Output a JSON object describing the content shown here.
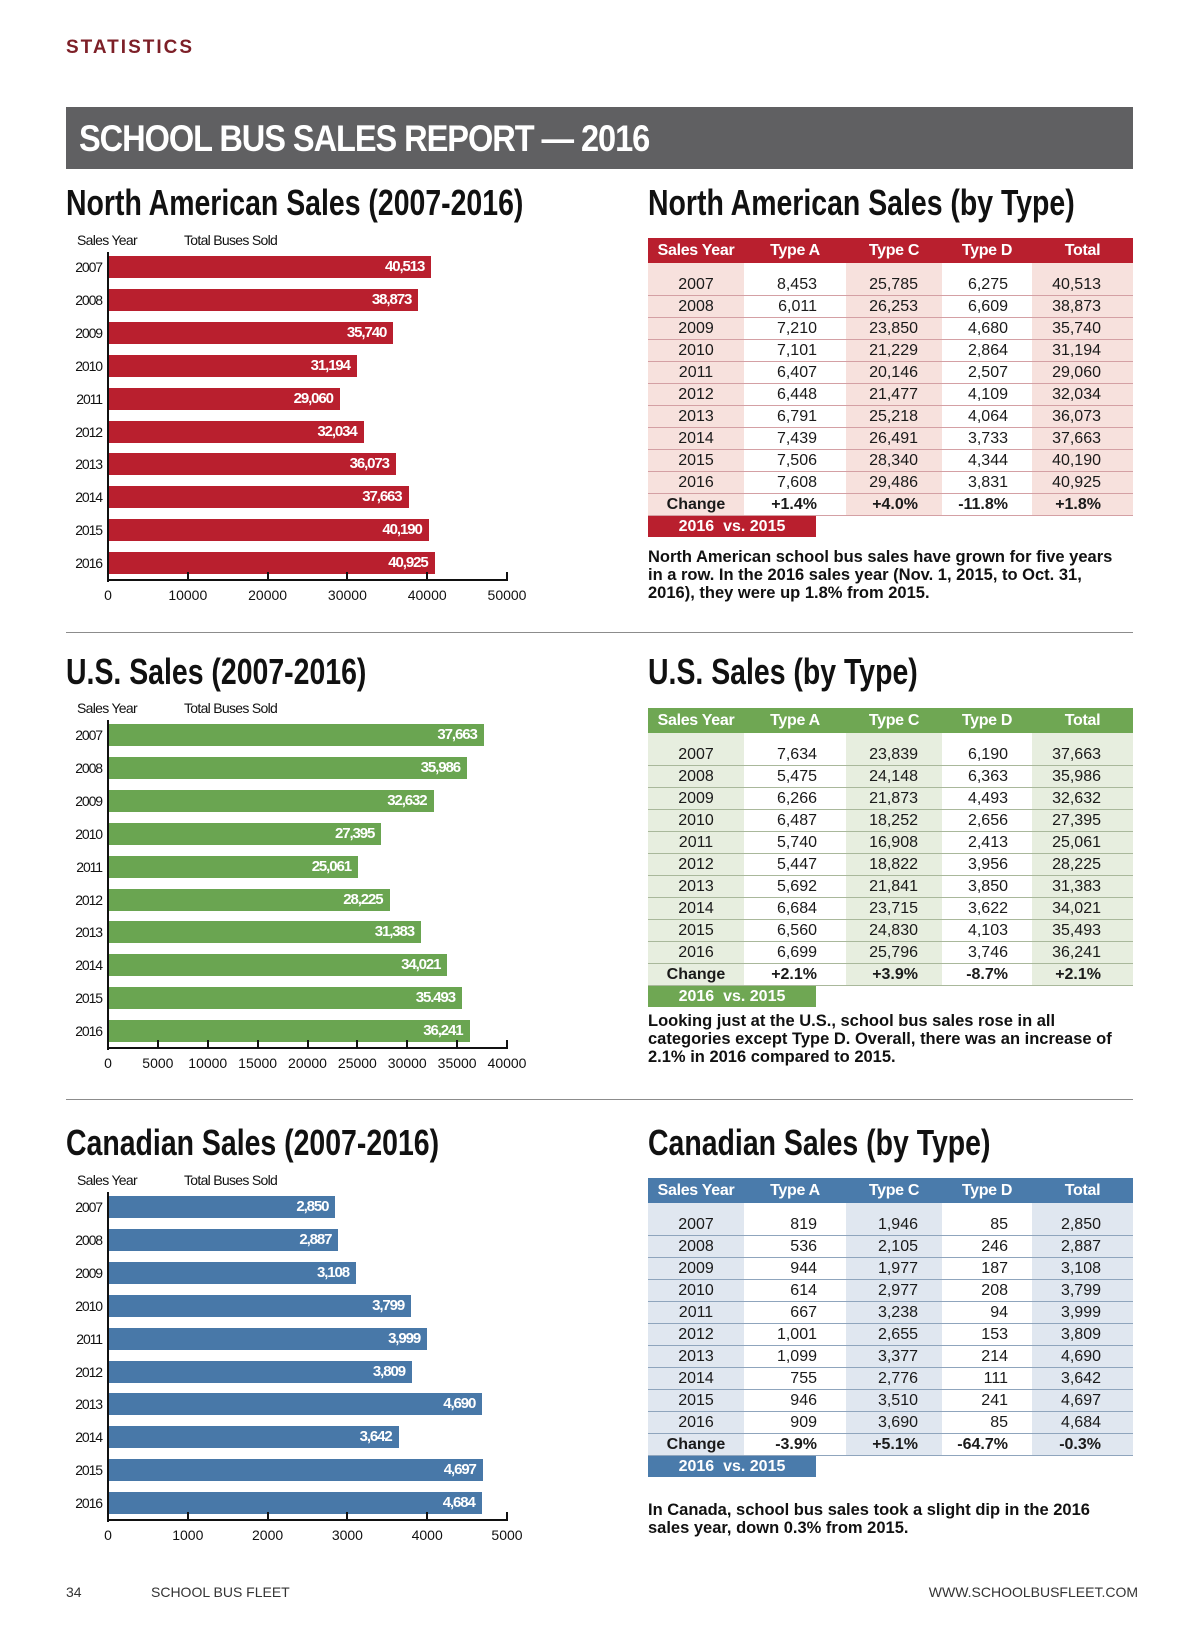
{
  "header": {
    "section_label": "STATISTICS",
    "banner_title": "SCHOOL BUS SALES REPORT — 2016"
  },
  "tables": [
    {
      "title": "North American Sales (by Type)",
      "colors": {
        "accent": "#b91f2e",
        "tint": "#f7e1dd",
        "rule": "#d4a0a4"
      },
      "headers": [
        "Sales Year",
        "Type A",
        "Type C",
        "Type D",
        "Total"
      ],
      "rows": [
        [
          "2007",
          "8,453",
          "25,785",
          "6,275",
          "40,513"
        ],
        [
          "2008",
          "6,011",
          "26,253",
          "6,609",
          "38,873"
        ],
        [
          "2009",
          "7,210",
          "23,850",
          "4,680",
          "35,740"
        ],
        [
          "2010",
          "7,101",
          "21,229",
          "2,864",
          "31,194"
        ],
        [
          "2011",
          "6,407",
          "20,146",
          "2,507",
          "29,060"
        ],
        [
          "2012",
          "6,448",
          "21,477",
          "4,109",
          "32,034"
        ],
        [
          "2013",
          "6,791",
          "25,218",
          "4,064",
          "36,073"
        ],
        [
          "2014",
          "7,439",
          "26,491",
          "3,733",
          "37,663"
        ],
        [
          "2015",
          "7,506",
          "28,340",
          "4,344",
          "40,190"
        ],
        [
          "2016",
          "7,608",
          "29,486",
          "3,831",
          "40,925"
        ]
      ],
      "change": [
        "Change",
        "+1.4%",
        "+4.0%",
        "-11.8%",
        "+1.8%"
      ],
      "comparison_label": "2016  vs. 2015",
      "description": "North American school bus sales have grown for five years in a row. In the 2016 sales year (Nov. 1, 2015, to Oct. 31, 2016), they were up 1.8% from 2015."
    },
    {
      "title": "U.S. Sales (by Type)",
      "colors": {
        "accent": "#6fa753",
        "tint": "#e7eedf",
        "rule": "#a9b89b"
      },
      "headers": [
        "Sales Year",
        "Type A",
        "Type C",
        "Type D",
        "Total"
      ],
      "rows": [
        [
          "2007",
          "7,634",
          "23,839",
          "6,190",
          "37,663"
        ],
        [
          "2008",
          "5,475",
          "24,148",
          "6,363",
          "35,986"
        ],
        [
          "2009",
          "6,266",
          "21,873",
          "4,493",
          "32,632"
        ],
        [
          "2010",
          "6,487",
          "18,252",
          "2,656",
          "27,395"
        ],
        [
          "2011",
          "5,740",
          "16,908",
          "2,413",
          "25,061"
        ],
        [
          "2012",
          "5,447",
          "18,822",
          "3,956",
          "28,225"
        ],
        [
          "2013",
          "5,692",
          "21,841",
          "3,850",
          "31,383"
        ],
        [
          "2014",
          "6,684",
          "23,715",
          "3,622",
          "34,021"
        ],
        [
          "2015",
          "6,560",
          "24,830",
          "4,103",
          "35,493"
        ],
        [
          "2016",
          "6,699",
          "25,796",
          "3,746",
          "36,241"
        ]
      ],
      "change": [
        "Change",
        "+2.1%",
        "+3.9%",
        "-8.7%",
        "+2.1%"
      ],
      "comparison_label": "2016  vs. 2015",
      "description": "Looking just at the U.S., school bus sales rose in all categories except Type D. Overall, there was an increase of 2.1% in 2016 compared to 2015."
    },
    {
      "title": "Canadian Sales (by Type)",
      "colors": {
        "accent": "#4a7bab",
        "tint": "#e0e7f0",
        "rule": "#8fa5bd"
      },
      "headers": [
        "Sales Year",
        "Type A",
        "Type C",
        "Type D",
        "Total"
      ],
      "rows": [
        [
          "2007",
          "819",
          "1,946",
          "85",
          "2,850"
        ],
        [
          "2008",
          "536",
          "2,105",
          "246",
          "2,887"
        ],
        [
          "2009",
          "944",
          "1,977",
          "187",
          "3,108"
        ],
        [
          "2010",
          "614",
          "2,977",
          "208",
          "3,799"
        ],
        [
          "2011",
          "667",
          "3,238",
          "94",
          "3,999"
        ],
        [
          "2012",
          "1,001",
          "2,655",
          "153",
          "3,809"
        ],
        [
          "2013",
          "1,099",
          "3,377",
          "214",
          "4,690"
        ],
        [
          "2014",
          "755",
          "2,776",
          "111",
          "3,642"
        ],
        [
          "2015",
          "946",
          "3,510",
          "241",
          "4,697"
        ],
        [
          "2016",
          "909",
          "3,690",
          "85",
          "4,684"
        ]
      ],
      "change": [
        "Change",
        "-3.9%",
        "+5.1%",
        "-64.7%",
        "-0.3%"
      ],
      "comparison_label": "2016  vs. 2015",
      "description": "In Canada, school bus sales took a slight dip in the 2016 sales year, down 0.3% from 2015."
    }
  ],
  "chart_data": [
    {
      "type": "bar",
      "orientation": "horizontal",
      "title": "North American Sales (2007-2016)",
      "ylabel": "Sales Year",
      "xlabel": "Total Buses Sold",
      "color": "#b91f2e",
      "categories": [
        "2007",
        "2008",
        "2009",
        "2010",
        "2011",
        "2012",
        "2013",
        "2014",
        "2015",
        "2016"
      ],
      "values": [
        40513,
        38873,
        35740,
        31194,
        29060,
        32034,
        36073,
        37663,
        40190,
        40925
      ],
      "value_labels": [
        "40,513",
        "38,873",
        "35,740",
        "31,194",
        "29,060",
        "32,034",
        "36,073",
        "37,663",
        "40,190",
        "40,925"
      ],
      "xlim": [
        0,
        50000
      ],
      "xticks": [
        0,
        10000,
        20000,
        30000,
        40000,
        50000
      ],
      "xtick_labels": [
        "0",
        "10000",
        "20000",
        "30000",
        "40000",
        "50000"
      ],
      "grid": false
    },
    {
      "type": "bar",
      "orientation": "horizontal",
      "title": "U.S. Sales (2007-2016)",
      "ylabel": "Sales Year",
      "xlabel": "Total Buses Sold",
      "color": "#6aa551",
      "categories": [
        "2007",
        "2008",
        "2009",
        "2010",
        "2011",
        "2012",
        "2013",
        "2014",
        "2015",
        "2016"
      ],
      "values": [
        37663,
        35986,
        32632,
        27395,
        25061,
        28225,
        31383,
        34021,
        35493,
        36241
      ],
      "value_labels": [
        "37,663",
        "35,986",
        "32,632",
        "27,395",
        "25,061",
        "28,225",
        "31,383",
        "34,021",
        "35.493",
        "36,241"
      ],
      "xlim": [
        0,
        40000
      ],
      "xticks": [
        0,
        5000,
        10000,
        15000,
        20000,
        25000,
        30000,
        35000,
        40000
      ],
      "xtick_labels": [
        "0",
        "5000",
        "10000",
        "15000",
        "20000",
        "25000",
        "30000",
        "35000",
        "40000"
      ],
      "grid": false
    },
    {
      "type": "bar",
      "orientation": "horizontal",
      "title": "Canadian Sales (2007-2016)",
      "ylabel": "Sales Year",
      "xlabel": "Total Buses Sold",
      "color": "#4878a8",
      "categories": [
        "2007",
        "2008",
        "2009",
        "2010",
        "2011",
        "2012",
        "2013",
        "2014",
        "2015",
        "2016"
      ],
      "values": [
        2850,
        2887,
        3108,
        3799,
        3999,
        3809,
        4690,
        3642,
        4697,
        4684
      ],
      "value_labels": [
        "2,850",
        "2,887",
        "3,108",
        "3,799",
        "3,999",
        "3,809",
        "4,690",
        "3,642",
        "4,697",
        "4,684"
      ],
      "xlim": [
        0,
        5000
      ],
      "xticks": [
        0,
        1000,
        2000,
        3000,
        4000,
        5000
      ],
      "xtick_labels": [
        "0",
        "1000",
        "2000",
        "3000",
        "4000",
        "5000"
      ],
      "grid": false
    }
  ],
  "footer": {
    "page_number": "34",
    "publication": "SCHOOL BUS FLEET",
    "url": "WWW.SCHOOLBUSFLEET.COM"
  }
}
